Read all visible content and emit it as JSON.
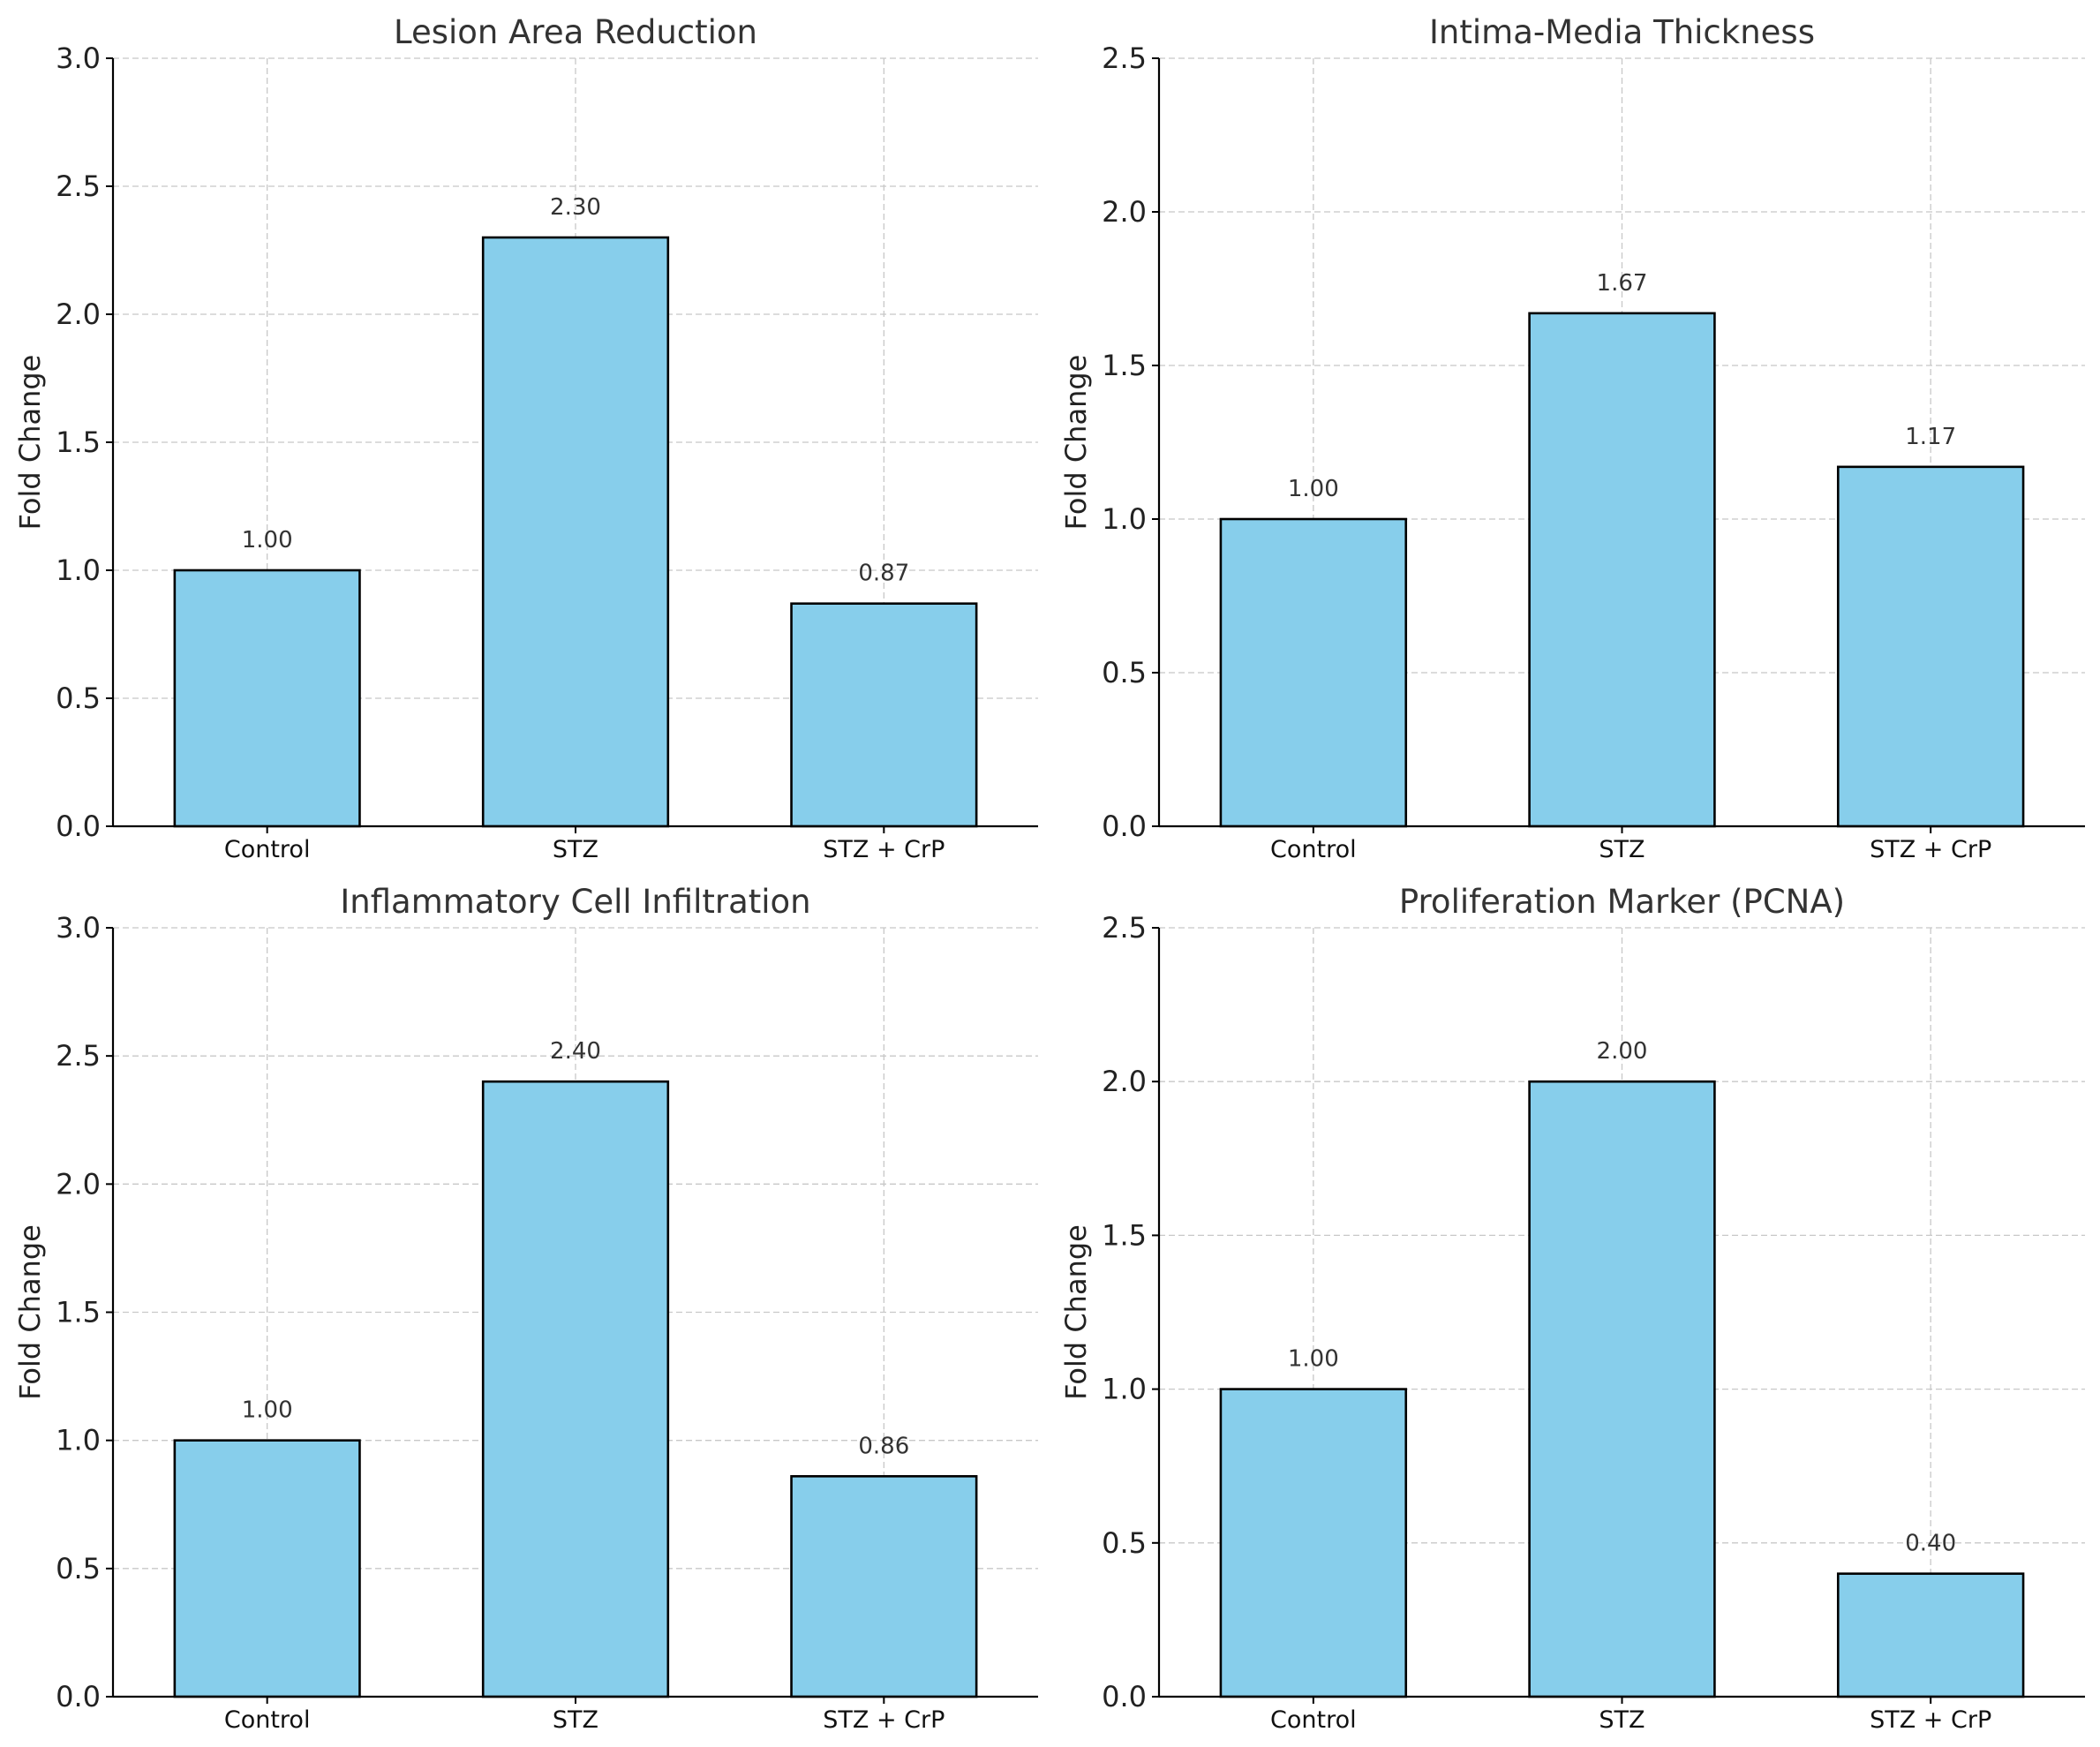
{
  "colors": {
    "bar_fill": "#87ceeb",
    "bar_edge": "#000000",
    "grid": "#c8c8c8"
  },
  "chart_data": [
    {
      "type": "bar",
      "title": "Lesion Area Reduction",
      "xlabel": "",
      "ylabel": "Fold Change",
      "categories": [
        "Control",
        "STZ",
        "STZ + CrP"
      ],
      "values": [
        1.0,
        2.3,
        0.87
      ],
      "value_labels": [
        "1.00",
        "2.30",
        "0.87"
      ],
      "ylim": [
        0,
        3.0
      ],
      "yticks": [
        0,
        0.5,
        1.0,
        1.5,
        2.0,
        2.5,
        3.0
      ],
      "ytick_labels": [
        "0.0",
        "0.5",
        "1.0",
        "1.5",
        "2.0",
        "2.5",
        "3.0"
      ],
      "grid": true
    },
    {
      "type": "bar",
      "title": "Intima-Media Thickness",
      "xlabel": "",
      "ylabel": "Fold Change",
      "categories": [
        "Control",
        "STZ",
        "STZ + CrP"
      ],
      "values": [
        1.0,
        1.67,
        1.17
      ],
      "value_labels": [
        "1.00",
        "1.67",
        "1.17"
      ],
      "ylim": [
        0,
        2.5
      ],
      "yticks": [
        0,
        0.5,
        1.0,
        1.5,
        2.0,
        2.5
      ],
      "ytick_labels": [
        "0.0",
        "0.5",
        "1.0",
        "1.5",
        "2.0",
        "2.5"
      ],
      "grid": true
    },
    {
      "type": "bar",
      "title": "Inflammatory Cell Infiltration",
      "xlabel": "",
      "ylabel": "Fold Change",
      "categories": [
        "Control",
        "STZ",
        "STZ + CrP"
      ],
      "values": [
        1.0,
        2.4,
        0.86
      ],
      "value_labels": [
        "1.00",
        "2.40",
        "0.86"
      ],
      "ylim": [
        0,
        3.0
      ],
      "yticks": [
        0,
        0.5,
        1.0,
        1.5,
        2.0,
        2.5,
        3.0
      ],
      "ytick_labels": [
        "0.0",
        "0.5",
        "1.0",
        "1.5",
        "2.0",
        "2.5",
        "3.0"
      ],
      "grid": true
    },
    {
      "type": "bar",
      "title": "Proliferation Marker (PCNA)",
      "xlabel": "",
      "ylabel": "Fold Change",
      "categories": [
        "Control",
        "STZ",
        "STZ + CrP"
      ],
      "values": [
        1.0,
        2.0,
        0.4
      ],
      "value_labels": [
        "1.00",
        "2.00",
        "0.40"
      ],
      "ylim": [
        0,
        2.5
      ],
      "yticks": [
        0,
        0.5,
        1.0,
        1.5,
        2.0,
        2.5
      ],
      "ytick_labels": [
        "0.0",
        "0.5",
        "1.0",
        "1.5",
        "2.0",
        "2.5"
      ],
      "grid": true
    }
  ]
}
